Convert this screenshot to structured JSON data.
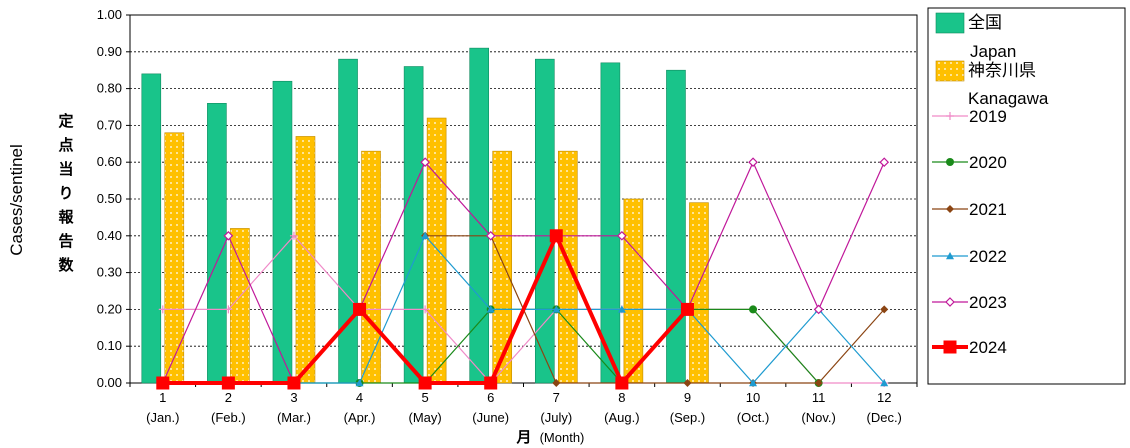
{
  "chart_data": {
    "type": "bar+line",
    "title": "",
    "ylabel_en": "Cases/sentinel",
    "ylabel_jp": [
      "定",
      "点",
      "当",
      "り",
      "報",
      "告",
      "数"
    ],
    "xlabel_jp": "月",
    "xlabel_en": "(Month)",
    "ylim": [
      0,
      1.0
    ],
    "y_ticks": [
      "0.00",
      "0.10",
      "0.20",
      "0.30",
      "0.40",
      "0.50",
      "0.60",
      "0.70",
      "0.80",
      "0.90",
      "1.00"
    ],
    "grid": "horizontal dashed",
    "legend_position": "right",
    "months": [
      "1",
      "2",
      "3",
      "4",
      "5",
      "6",
      "7",
      "8",
      "9",
      "10",
      "11",
      "12"
    ],
    "month_names": [
      "(Jan.)",
      "(Feb.)",
      "(Mar.)",
      "(Apr.)",
      "(May)",
      "(June)",
      "(July)",
      "(Aug.)",
      "(Sep.)",
      "(Oct.)",
      "(Nov.)",
      "(Dec.)"
    ],
    "bar_series": [
      {
        "name_lines": [
          "全国",
          "Japan"
        ],
        "color": "#19c48a",
        "values": [
          0.84,
          0.76,
          0.82,
          0.88,
          0.86,
          0.91,
          0.88,
          0.87,
          0.85,
          null,
          null,
          null
        ]
      },
      {
        "name_lines": [
          "神奈川県",
          "Kanagawa"
        ],
        "color": "#ffc000",
        "values": [
          0.68,
          0.42,
          0.67,
          0.63,
          0.72,
          0.63,
          0.63,
          0.5,
          0.49,
          null,
          null,
          null
        ]
      }
    ],
    "line_series": [
      {
        "name": "2019",
        "color": "#f08ac8",
        "marker": "plus",
        "values": [
          0.2,
          0.2,
          0.4,
          0.2,
          0.2,
          0.0,
          0.2,
          0.2,
          0.2,
          0.2,
          0.0,
          0.0
        ]
      },
      {
        "name": "2020",
        "color": "#1a8a1a",
        "marker": "circle",
        "values": [
          0.0,
          0.0,
          0.0,
          0.0,
          0.0,
          0.2,
          0.2,
          0.0,
          0.2,
          0.2,
          0.0,
          null
        ]
      },
      {
        "name": "2021",
        "color": "#8b4513",
        "marker": "diamond",
        "values": [
          null,
          null,
          null,
          null,
          0.4,
          0.4,
          0.0,
          0.0,
          0.0,
          0.0,
          0.0,
          0.2
        ]
      },
      {
        "name": "2022",
        "color": "#1f9bd0",
        "marker": "triangle",
        "values": [
          null,
          null,
          0.0,
          0.0,
          0.4,
          0.2,
          0.2,
          0.2,
          0.2,
          0.0,
          0.2,
          0.0
        ]
      },
      {
        "name": "2023",
        "color": "#c0189a",
        "marker": "diamond-open",
        "values": [
          0.0,
          0.4,
          0.0,
          0.2,
          0.6,
          0.4,
          0.4,
          0.4,
          0.2,
          0.6,
          0.2,
          0.6
        ]
      },
      {
        "name": "2024",
        "color": "#ff0000",
        "marker": "square",
        "values": [
          0.0,
          0.0,
          0.0,
          0.2,
          0.0,
          0.0,
          0.4,
          0.0,
          0.2,
          null,
          null,
          null
        ]
      }
    ]
  }
}
